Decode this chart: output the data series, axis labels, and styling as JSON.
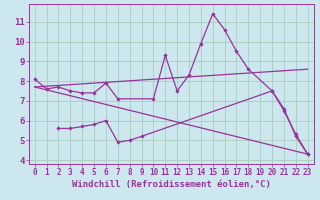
{
  "bg_color": "#cce8ee",
  "line_color": "#993399",
  "grid_color": "#aaccbb",
  "xlabel": "Windchill (Refroidissement éolien,°C)",
  "xlabel_fontsize": 6.5,
  "xtick_fontsize": 5.5,
  "ytick_fontsize": 6.5,
  "xlim": [
    -0.5,
    23.5
  ],
  "ylim": [
    3.8,
    11.9
  ],
  "yticks": [
    4,
    5,
    6,
    7,
    8,
    9,
    10,
    11
  ],
  "xticks": [
    0,
    1,
    2,
    3,
    4,
    5,
    6,
    7,
    8,
    9,
    10,
    11,
    12,
    13,
    14,
    15,
    16,
    17,
    18,
    19,
    20,
    21,
    22,
    23
  ],
  "series1": [
    [
      0,
      8.1
    ],
    [
      1,
      7.6
    ],
    [
      2,
      7.7
    ],
    [
      3,
      7.5
    ],
    [
      4,
      7.4
    ],
    [
      5,
      7.4
    ],
    [
      6,
      7.9
    ],
    [
      7,
      7.1
    ],
    [
      10,
      7.1
    ],
    [
      11,
      9.3
    ],
    [
      12,
      7.5
    ],
    [
      13,
      8.3
    ],
    [
      14,
      9.9
    ],
    [
      15,
      11.4
    ],
    [
      16,
      10.6
    ],
    [
      17,
      9.5
    ],
    [
      18,
      8.6
    ],
    [
      20,
      7.5
    ],
    [
      21,
      6.5
    ],
    [
      22,
      5.3
    ],
    [
      23,
      4.3
    ]
  ],
  "series2": [
    [
      2,
      5.6
    ],
    [
      3,
      5.6
    ],
    [
      4,
      5.7
    ],
    [
      5,
      5.8
    ],
    [
      6,
      6.0
    ],
    [
      7,
      4.9
    ],
    [
      8,
      5.0
    ],
    [
      9,
      5.2
    ],
    [
      20,
      7.5
    ],
    [
      21,
      6.6
    ],
    [
      22,
      5.2
    ],
    [
      23,
      4.3
    ]
  ],
  "trend1_x": [
    0,
    23
  ],
  "trend1_y": [
    7.7,
    8.6
  ],
  "trend2_x": [
    0,
    23
  ],
  "trend2_y": [
    7.7,
    4.3
  ]
}
